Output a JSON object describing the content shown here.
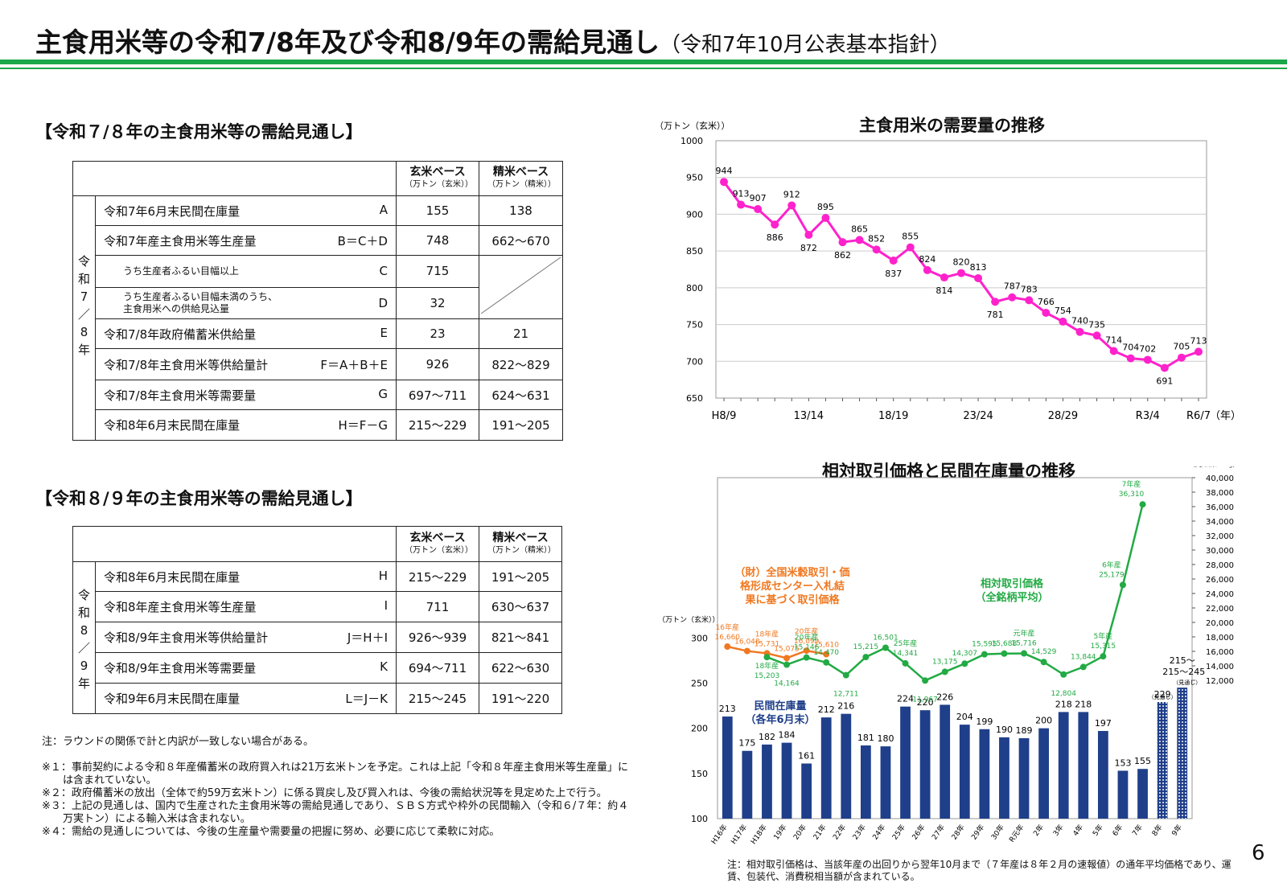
{
  "title": {
    "main": "主食用米等の令和7/8年及び令和8/9年の需給見通し",
    "sub": "（令和7年10月公表基本指針）"
  },
  "page_number": "6",
  "section1": {
    "title": "【令和７/８年の主食用米等の需給見通し】",
    "header_genmai": "玄米ベース",
    "header_genmai_unit": "（万トン（玄米））",
    "header_seimai": "精米ベース",
    "header_seimai_unit": "（万トン（精米））",
    "vert": [
      "令",
      "和",
      "7",
      "／",
      "8",
      "年"
    ],
    "rows": [
      {
        "label": "令和7年6月末民間在庫量",
        "code": "A",
        "genmai": "155",
        "seimai": "138"
      },
      {
        "label": "令和7年産主食用米等生産量",
        "code": "B＝C＋D",
        "genmai": "748",
        "seimai": "662～670"
      },
      {
        "label": "うち生産者ふるい目幅以上",
        "code": "C",
        "genmai": "715",
        "seimai": ""
      },
      {
        "label": "うち生産者ふるい目幅未満のうち、",
        "label2": "主食用米への供給見込量",
        "code": "D",
        "genmai": "32",
        "seimai": ""
      },
      {
        "label": "令和7/8年政府備蓄米供給量",
        "code": "E",
        "genmai": "23",
        "seimai": "21"
      },
      {
        "label": "令和7/8年主食用米等供給量計",
        "code": "F＝A＋B＋E",
        "genmai": "926",
        "seimai": "822～829"
      },
      {
        "label": "令和7/8年主食用米等需要量",
        "code": "G",
        "genmai": "697～711",
        "seimai": "624～631"
      },
      {
        "label": "令和8年6月末民間在庫量",
        "code": "H＝F－G",
        "genmai": "215～229",
        "seimai": "191～205"
      }
    ]
  },
  "section2": {
    "title": "【令和８/９年の主食用米等の需給見通し】",
    "header_genmai": "玄米ベース",
    "header_genmai_unit": "（万トン（玄米））",
    "header_seimai": "精米ベース",
    "header_seimai_unit": "（万トン（精米））",
    "vert": [
      "令",
      "和",
      "8",
      "／",
      "9",
      "年"
    ],
    "rows": [
      {
        "label": "令和8年6月末民間在庫量",
        "code": "H",
        "genmai": "215～229",
        "seimai": "191～205"
      },
      {
        "label": "令和8年産主食用米等生産量",
        "code": "I",
        "genmai": "711",
        "seimai": "630～637"
      },
      {
        "label": "令和8/9年主食用米等供給量計",
        "code": "J＝H＋I",
        "genmai": "926～939",
        "seimai": "821～841"
      },
      {
        "label": "令和8/9年主食用米等需要量",
        "code": "K",
        "genmai": "694～711",
        "seimai": "622～630"
      },
      {
        "label": "令和9年6月末民間在庫量",
        "code": "L＝J－K",
        "genmai": "215～245",
        "seimai": "191～220"
      }
    ]
  },
  "notes": {
    "n0": "注：ラウンドの関係で計と内訳が一致しない場合がある。",
    "n1": "※１：事前契約による令和８年産備蓄米の政府買入れは21万玄米トンを予定。これは上記「令和８年産主食用米等生産量」には含まれていない。",
    "n2": "※２：政府備蓄米の放出（全体で約59万玄米トン）に係る買戻し及び買入れは、今後の需給状況等を見定めた上で行う。",
    "n3": "※３：上記の見通しは、国内で生産された主食用米等の需給見通しであり、ＳＢＳ方式や枠外の民間輸入（令和６/７年：約４万実トン）による輸入米は含まれない。",
    "n4": "※４：需給の見通しについては、今後の生産量や需要量の把握に努め、必要に応じて柔軟に対応。"
  },
  "chart_data": [
    {
      "type": "line",
      "title": "主食用米の需要量の推移",
      "ylabel": "（万トン（玄米））",
      "xlabel_unit": "（年）",
      "ylim": [
        650,
        1000
      ],
      "yticks": [
        "650",
        "700",
        "750",
        "800",
        "850",
        "900",
        "950",
        "1000"
      ],
      "xtick_labels": [
        "H8/9",
        "13/14",
        "18/19",
        "23/24",
        "28/29",
        "R3/4",
        "R6/7"
      ],
      "line_color": "#ff22cc",
      "values": [
        944,
        913,
        907,
        886,
        912,
        872,
        895,
        862,
        865,
        852,
        837,
        855,
        824,
        814,
        820,
        813,
        781,
        787,
        783,
        766,
        754,
        740,
        735,
        714,
        704,
        702,
        691,
        705,
        713
      ],
      "value_labels": [
        "944",
        "913",
        "907",
        "886",
        "912",
        "872",
        "895",
        "862",
        "865",
        "852",
        "837",
        "855",
        "824",
        "814",
        "820",
        "813",
        "781",
        "787",
        "783",
        "766",
        "754",
        "740",
        "735",
        "714",
        "704",
        "702",
        "691",
        "705",
        "713"
      ],
      "grid": true
    },
    {
      "type": "bar+line",
      "title": "相対取引価格と民間在庫量の推移",
      "left_ylabel": "（万トン（玄米））",
      "right_ylabel": "（円/玄米60kg）",
      "left_ylim": [
        100,
        300
      ],
      "left_yticks": [
        "100",
        "150",
        "200",
        "250",
        "300"
      ],
      "right_ylim": [
        12000,
        40000
      ],
      "right_yticks": [
        "12,000",
        "14,000",
        "16,000",
        "18,000",
        "20,000",
        "22,000",
        "24,000",
        "26,000",
        "28,000",
        "30,000",
        "32,000",
        "34,000",
        "36,000",
        "38,000",
        "40,000"
      ],
      "categories": [
        "H16年",
        "H17年",
        "H18年",
        "19年",
        "20年",
        "21年",
        "22年",
        "23年",
        "24年",
        "25年",
        "26年",
        "27年",
        "28年",
        "29年",
        "30年",
        "R元年",
        "2年",
        "3年",
        "4年",
        "5年",
        "6年",
        "7年",
        "8年",
        "9年"
      ],
      "bar_color": "#1f3f8a",
      "stock": [
        213,
        175,
        182,
        184,
        161,
        212,
        216,
        181,
        180,
        224,
        220,
        226,
        204,
        199,
        190,
        189,
        200,
        218,
        218,
        197,
        153,
        155,
        229,
        245
      ],
      "stock_labels": [
        "213",
        "175",
        "182",
        "184",
        "161",
        "212",
        "216",
        "181",
        "180",
        "224",
        "220",
        "226",
        "204",
        "199",
        "190",
        "189",
        "200",
        "218",
        "218",
        "197",
        "153",
        "155",
        "229",
        "215～245"
      ],
      "forecast_labels": {
        "y8": "（見通し）",
        "y9": "（見通し）",
        "y9_top": "215～"
      },
      "stock_series_name": "民間在庫量",
      "stock_series_sub": "（各年6月末）",
      "center_series": {
        "name1": "（財）全国米穀取引・価",
        "name2": "格形成センター入札結",
        "name3": "果に基づく取引価格",
        "color": "#f07820",
        "values": [
          16660,
          16048,
          15731,
          15075,
          16099,
          15610
        ],
        "labels": [
          "16,660",
          "16,048",
          "15,731",
          "15,075",
          "16,099",
          "15,610"
        ],
        "year_labels": [
          "16年産",
          "",
          "18年産",
          "",
          "20年産",
          ""
        ]
      },
      "relative_series": {
        "name1": "相対取引価格",
        "name2": "（全銘柄平均）",
        "color": "#22aa44",
        "values": [
          15203,
          14164,
          15146,
          14470,
          12711,
          15215,
          16501,
          14341,
          11967,
          13175,
          14307,
          15595,
          15688,
          15716,
          14529,
          12804,
          13844,
          15315,
          25179,
          36310
        ],
        "labels": [
          "15,203",
          "14,164",
          "15,146",
          "14,470",
          "12,711",
          "15,215",
          "16,501",
          "14,341",
          "11,967",
          "13,175",
          "14,307",
          "15,595",
          "15,688",
          "15,716",
          "14,529",
          "12,804",
          "13,844",
          "15,315",
          "25,179",
          "36,310"
        ],
        "year_labels": {
          "0": "18年産",
          "2": "20年産",
          "7": "25年産",
          "13": "元年産",
          "17": "5年産",
          "18": "6年産",
          "19": "7年産"
        }
      },
      "note": "注：相対取引価格は、当該年産の出回りから翌年10月まで（７年産は８年２月の速報値）の通年平均価格であり、運賃、包装代、消費税相当額が含まれている。"
    }
  ]
}
